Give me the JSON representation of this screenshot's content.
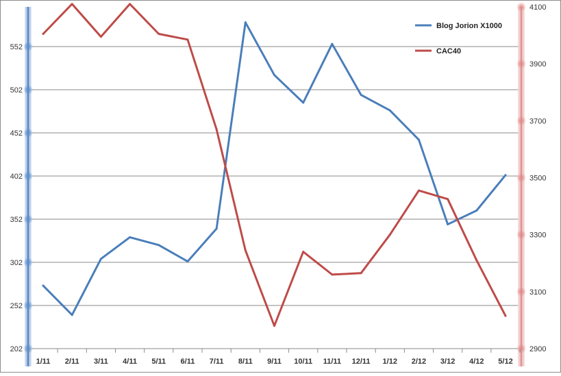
{
  "chart_data": {
    "type": "line",
    "categories": [
      "1/11",
      "2/11",
      "3/11",
      "4/11",
      "5/11",
      "6/11",
      "7/11",
      "8/11",
      "9/11",
      "10/11",
      "11/11",
      "12/11",
      "1/12",
      "2/12",
      "3/12",
      "4/12",
      "5/12"
    ],
    "series": [
      {
        "name": "Blog Jorion X1000",
        "axis": "left",
        "color": "#4a7eba",
        "values": [
          275,
          241,
          306,
          331,
          322,
          303,
          341,
          580,
          519,
          487,
          555,
          496,
          478,
          444,
          346,
          362,
          403
        ]
      },
      {
        "name": "CAC40",
        "axis": "right",
        "color": "#be4b48",
        "values": [
          4005,
          4110,
          3995,
          4110,
          4005,
          3985,
          3670,
          3245,
          2980,
          3240,
          3160,
          3165,
          3300,
          3455,
          3425,
          3210,
          3015
        ]
      }
    ],
    "left_axis": {
      "ticks": [
        202,
        252,
        302,
        352,
        402,
        452,
        502,
        552
      ],
      "ylim": [
        202,
        598
      ]
    },
    "right_axis": {
      "ticks": [
        2900,
        3100,
        3300,
        3500,
        3700,
        3900,
        4100
      ],
      "ylim": [
        2900,
        4100
      ]
    },
    "grid": true,
    "legend_position": "top-right",
    "title": "",
    "xlabel": "",
    "ylabel": ""
  }
}
